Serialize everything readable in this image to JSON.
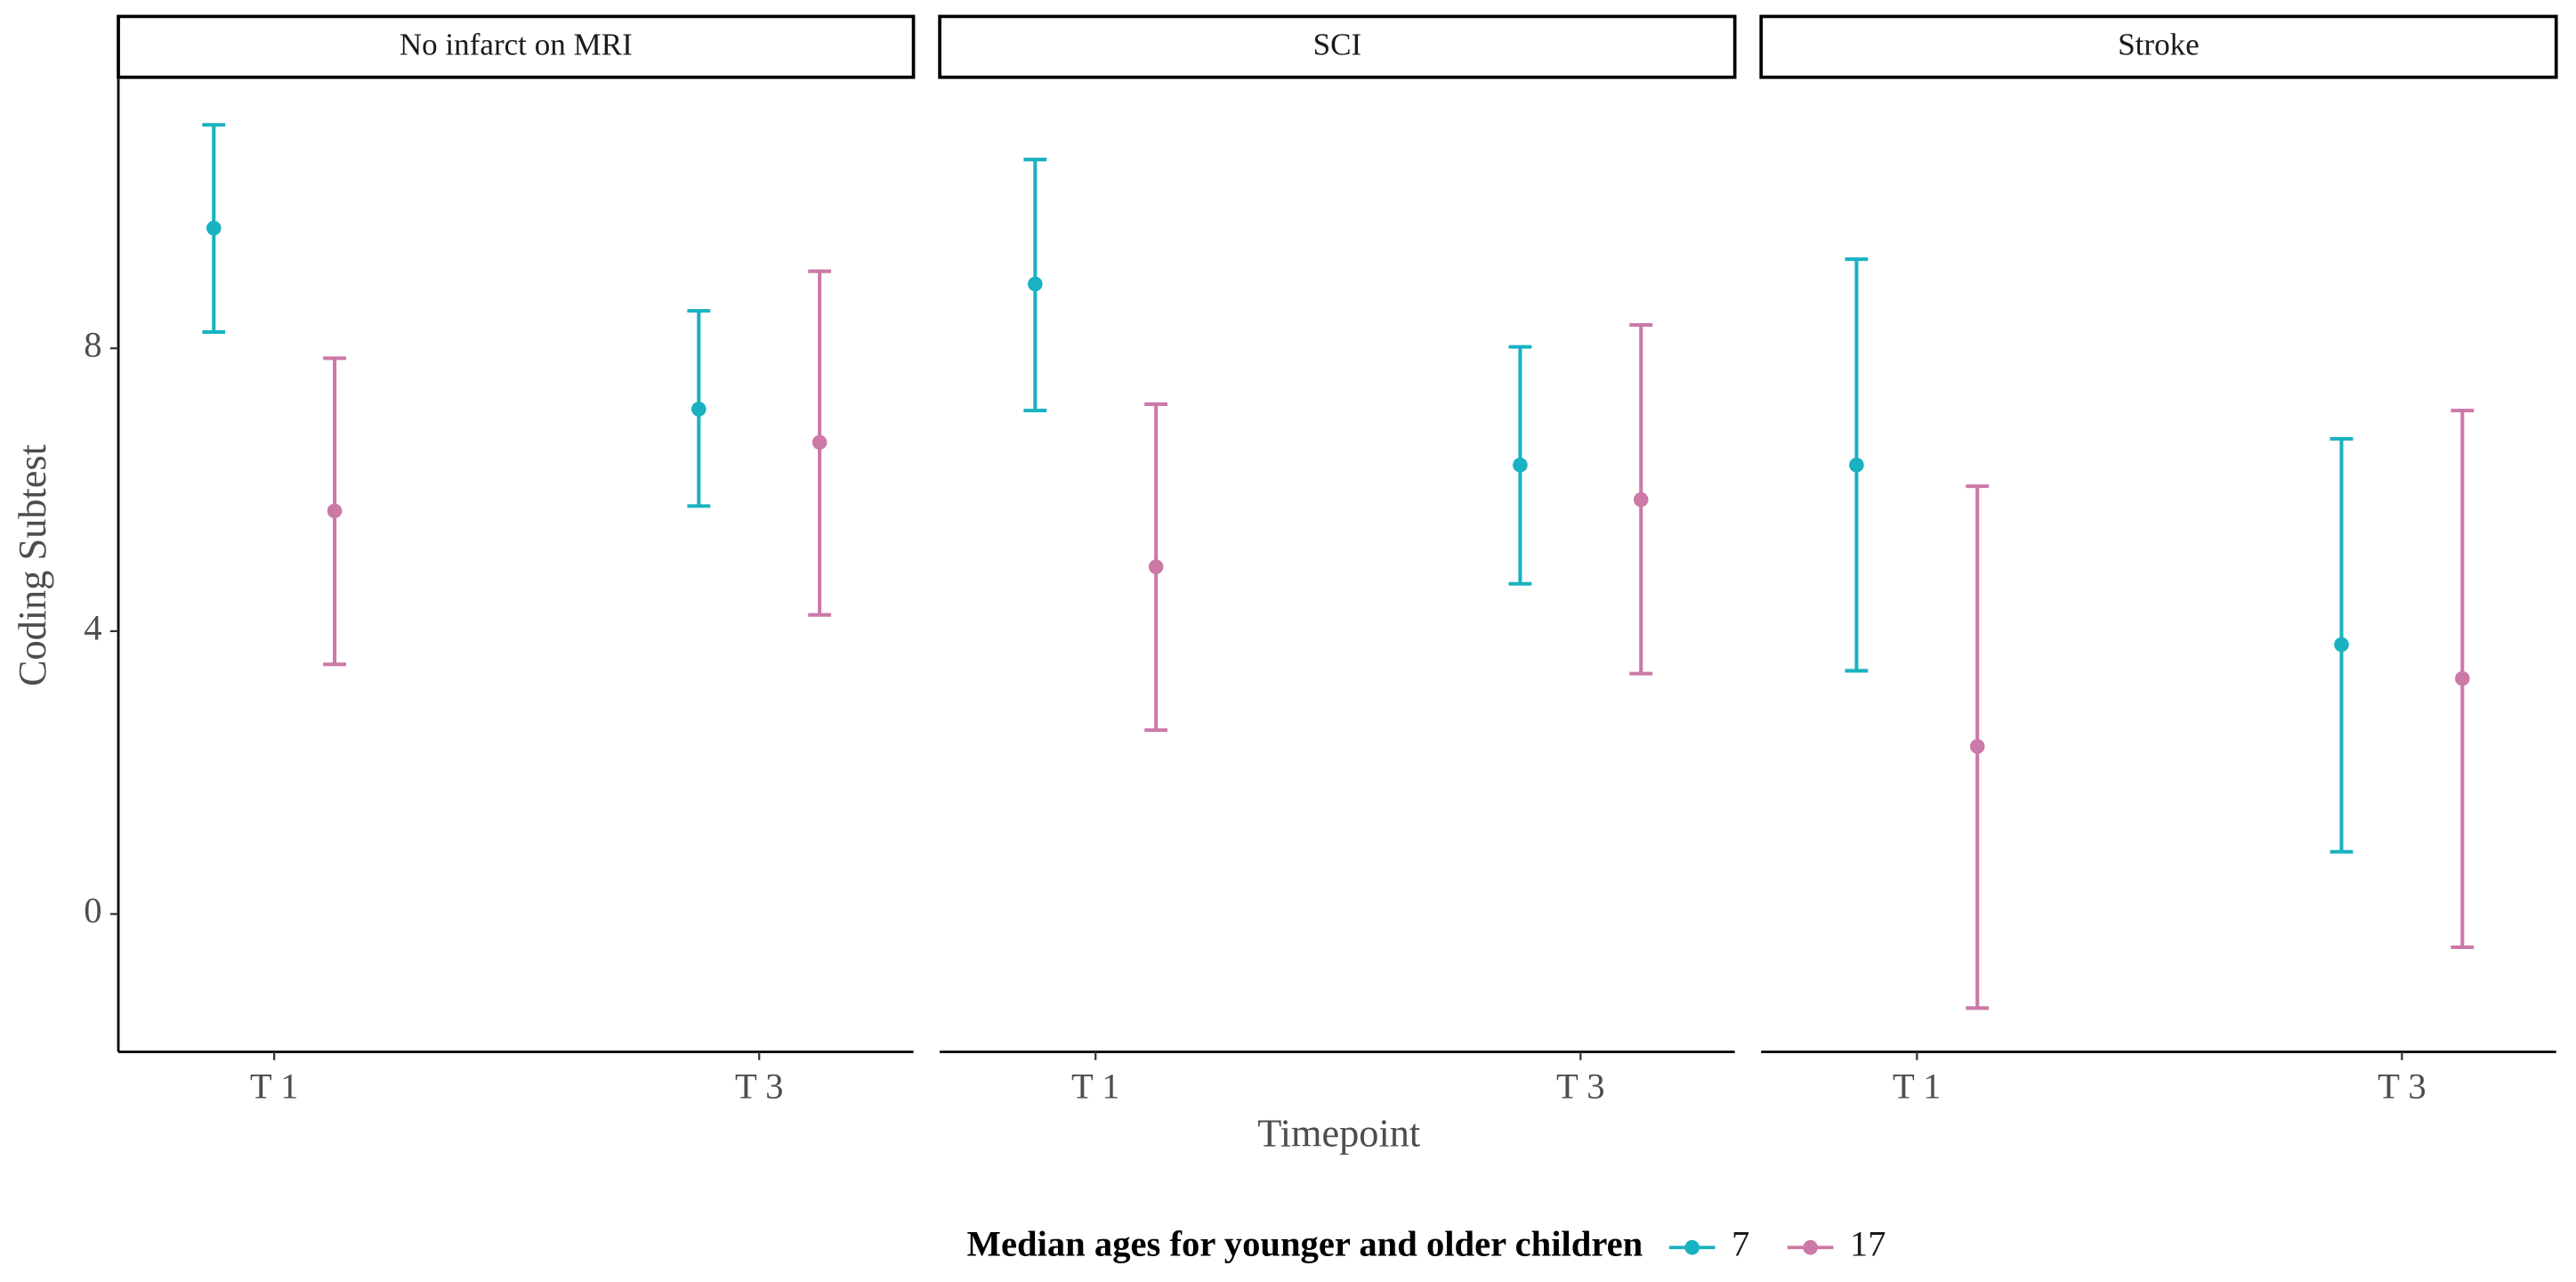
{
  "chart_data": {
    "type": "errorbar",
    "facets": [
      "No infarct on MRI",
      "SCI",
      "Stroke"
    ],
    "categories": [
      "T 1",
      "T 3"
    ],
    "y_label": "Coding Subtest",
    "x_label": "Timepoint",
    "legend_title": "Median ages for younger and older children",
    "ylim": [
      -1.95,
      11.81
    ],
    "yticks": [
      0,
      4,
      8
    ],
    "series": [
      {
        "name": "7",
        "color": "#19b2c1",
        "values": [
          [
            9.7,
            7.14
          ],
          [
            8.91,
            6.35
          ],
          [
            6.35,
            3.81
          ]
        ],
        "lower": [
          [
            8.23,
            5.77
          ],
          [
            7.12,
            4.67
          ],
          [
            3.44,
            0.88
          ]
        ],
        "upper": [
          [
            11.16,
            8.53
          ],
          [
            10.67,
            8.02
          ],
          [
            9.26,
            6.72
          ]
        ]
      },
      {
        "name": "17",
        "color": "#cc79a7",
        "values": [
          [
            5.7,
            6.67
          ],
          [
            4.91,
            5.86
          ],
          [
            2.37,
            3.33
          ]
        ],
        "lower": [
          [
            3.53,
            4.23
          ],
          [
            2.6,
            3.4
          ],
          [
            -1.33,
            -0.47
          ]
        ],
        "upper": [
          [
            7.86,
            9.09
          ],
          [
            7.21,
            8.33
          ],
          [
            6.05,
            7.12
          ]
        ]
      }
    ]
  }
}
